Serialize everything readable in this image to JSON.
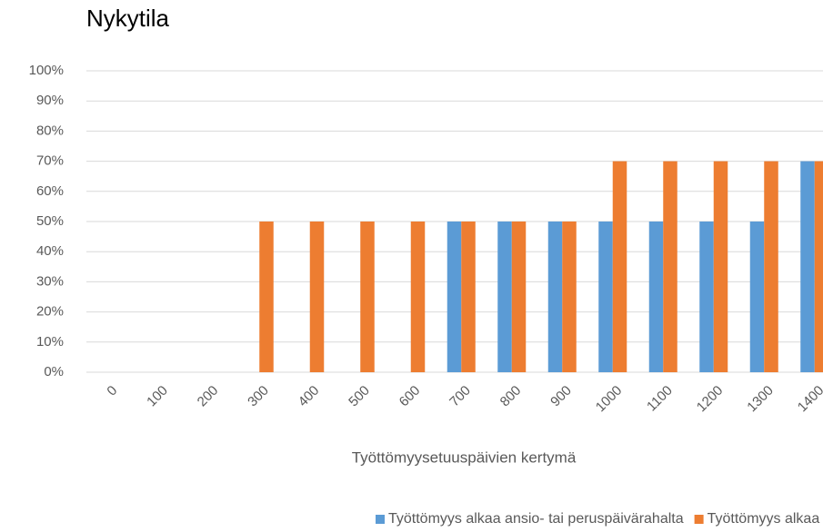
{
  "chart_data": {
    "type": "bar",
    "title": "Nykytila",
    "x_label": "Työttömyysetuuspäivien kertymä",
    "categories": [
      "0",
      "100",
      "200",
      "300",
      "400",
      "500",
      "600",
      "700",
      "800",
      "900",
      "1000",
      "1100",
      "1200",
      "1300",
      "1400"
    ],
    "series": [
      {
        "name": "Työttömyys alkaa ansio- tai peruspäivärahalta",
        "color": "#5b9bd5",
        "values": [
          0,
          0,
          0,
          0,
          0,
          0,
          0,
          50,
          50,
          50,
          50,
          50,
          50,
          50,
          70
        ]
      },
      {
        "name": "Työttömyys alkaa työmarkkinatuelta",
        "color": "#ed7d31",
        "values": [
          0,
          0,
          0,
          50,
          50,
          50,
          50,
          50,
          50,
          50,
          70,
          70,
          70,
          70,
          70
        ]
      }
    ],
    "ylim": [
      0,
      100
    ],
    "yticks": [
      {
        "value": 0,
        "label": "0%"
      },
      {
        "value": 10,
        "label": "10%"
      },
      {
        "value": 20,
        "label": "20%"
      },
      {
        "value": 30,
        "label": "30%"
      },
      {
        "value": 40,
        "label": "40%"
      },
      {
        "value": 50,
        "label": "50%"
      },
      {
        "value": 60,
        "label": "60%"
      },
      {
        "value": 70,
        "label": "70%"
      },
      {
        "value": 80,
        "label": "80%"
      },
      {
        "value": 90,
        "label": "90%"
      },
      {
        "value": 100,
        "label": "100%"
      }
    ],
    "grid": true,
    "legend": "bottom"
  }
}
